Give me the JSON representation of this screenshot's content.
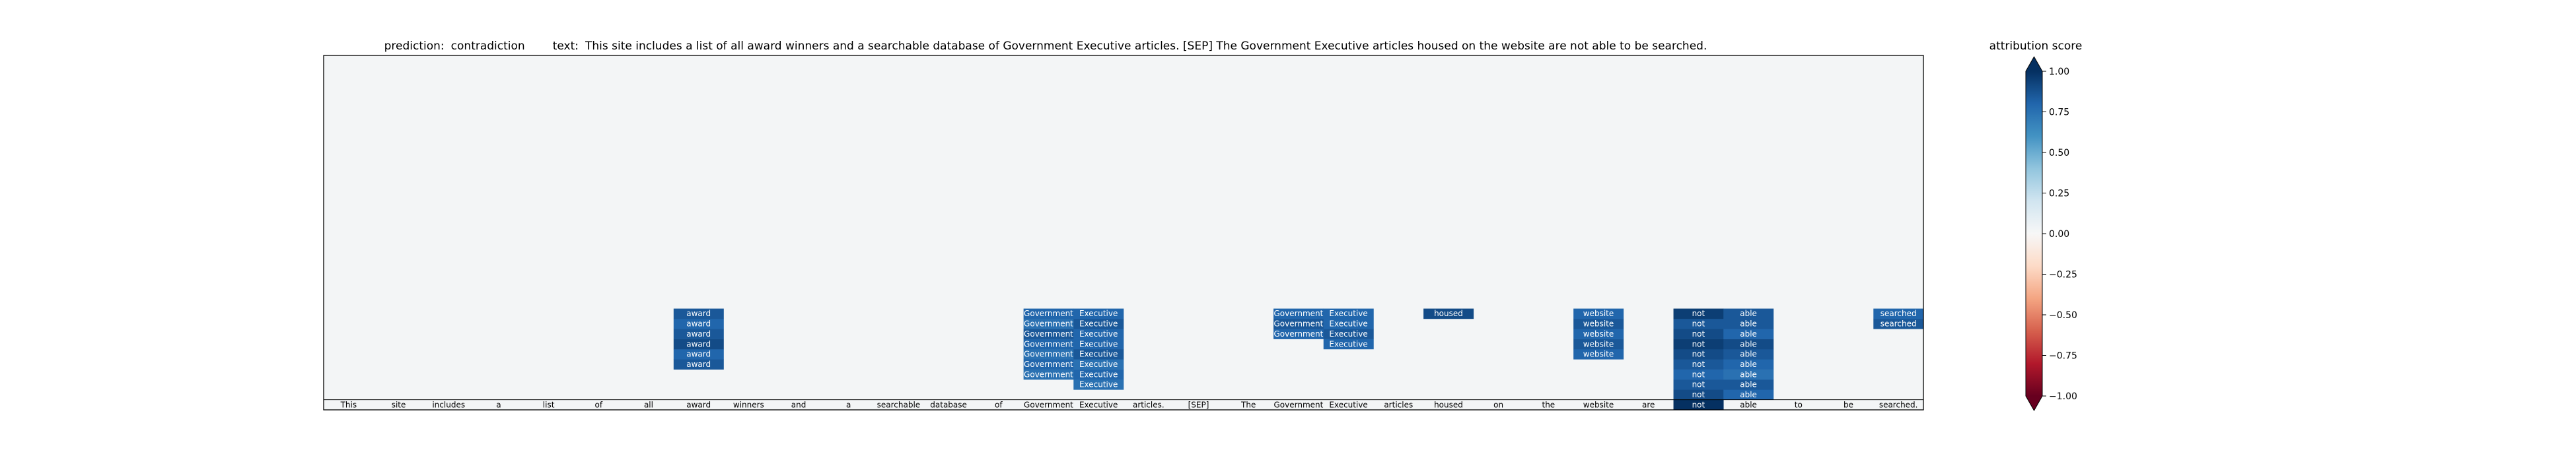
{
  "chart_data": {
    "type": "heatmap",
    "title": {
      "prediction_label": "prediction:",
      "prediction": "contradiction",
      "text_label": "text:",
      "text": "This site includes a list of all award winners and a searchable database of Government Executive articles. [SEP] The Government Executive articles housed on the website are not able to be searched."
    },
    "tokens": [
      "This",
      "site",
      "includes",
      "a",
      "list",
      "of",
      "all",
      "award",
      "winners",
      "and",
      "a",
      "searchable",
      "database",
      "of",
      "Government",
      "Executive",
      "articles.",
      "[SEP]",
      "The",
      "Government",
      "Executive",
      "articles",
      "housed",
      "on",
      "the",
      "website",
      "are",
      "not",
      "able",
      "to",
      "be",
      "searched."
    ],
    "rows": 35,
    "bottom_row_scores": [
      0,
      0,
      0,
      0,
      0,
      0,
      0,
      0,
      0,
      0,
      0,
      0,
      0,
      0,
      0,
      0,
      0,
      0,
      0,
      0,
      0,
      0,
      0,
      0,
      0,
      0,
      0,
      1.0,
      0,
      0,
      0,
      0
    ],
    "highlights": [
      {
        "token": "award",
        "col": 7,
        "cells": [
          {
            "row_from_bottom": 4,
            "score": 0.85
          },
          {
            "row_from_bottom": 5,
            "score": 0.8
          },
          {
            "row_from_bottom": 6,
            "score": 0.9
          },
          {
            "row_from_bottom": 7,
            "score": 0.85
          },
          {
            "row_from_bottom": 8,
            "score": 0.8
          },
          {
            "row_from_bottom": 9,
            "score": 0.85
          }
        ]
      },
      {
        "token": "Government",
        "col": 14,
        "cells": [
          {
            "row_from_bottom": 3,
            "score": 0.75
          },
          {
            "row_from_bottom": 4,
            "score": 0.8
          },
          {
            "row_from_bottom": 5,
            "score": 0.75
          },
          {
            "row_from_bottom": 6,
            "score": 0.8
          },
          {
            "row_from_bottom": 7,
            "score": 0.85
          },
          {
            "row_from_bottom": 8,
            "score": 0.75
          },
          {
            "row_from_bottom": 9,
            "score": 0.8
          }
        ]
      },
      {
        "token": "Executive",
        "col": 15,
        "cells": [
          {
            "row_from_bottom": 2,
            "score": 0.75
          },
          {
            "row_from_bottom": 3,
            "score": 0.8
          },
          {
            "row_from_bottom": 4,
            "score": 0.75
          },
          {
            "row_from_bottom": 5,
            "score": 0.85
          },
          {
            "row_from_bottom": 6,
            "score": 0.8
          },
          {
            "row_from_bottom": 7,
            "score": 0.8
          },
          {
            "row_from_bottom": 8,
            "score": 0.85
          },
          {
            "row_from_bottom": 9,
            "score": 0.8
          }
        ]
      },
      {
        "token": "Government",
        "col": 19,
        "cells": [
          {
            "row_from_bottom": 7,
            "score": 0.8
          },
          {
            "row_from_bottom": 8,
            "score": 0.85
          },
          {
            "row_from_bottom": 9,
            "score": 0.8
          }
        ]
      },
      {
        "token": "Executive",
        "col": 20,
        "cells": [
          {
            "row_from_bottom": 6,
            "score": 0.8
          },
          {
            "row_from_bottom": 7,
            "score": 0.85
          },
          {
            "row_from_bottom": 8,
            "score": 0.8
          },
          {
            "row_from_bottom": 9,
            "score": 0.8
          }
        ]
      },
      {
        "token": "housed",
        "col": 22,
        "cells": [
          {
            "row_from_bottom": 9,
            "score": 0.9
          }
        ]
      },
      {
        "token": "website",
        "col": 25,
        "cells": [
          {
            "row_from_bottom": 5,
            "score": 0.8
          },
          {
            "row_from_bottom": 6,
            "score": 0.85
          },
          {
            "row_from_bottom": 7,
            "score": 0.8
          },
          {
            "row_from_bottom": 8,
            "score": 0.85
          },
          {
            "row_from_bottom": 9,
            "score": 0.8
          }
        ]
      },
      {
        "token": "not",
        "col": 27,
        "cells": [
          {
            "row_from_bottom": 1,
            "score": 0.9
          },
          {
            "row_from_bottom": 2,
            "score": 0.85
          },
          {
            "row_from_bottom": 3,
            "score": 0.8
          },
          {
            "row_from_bottom": 4,
            "score": 0.85
          },
          {
            "row_from_bottom": 5,
            "score": 0.9
          },
          {
            "row_from_bottom": 6,
            "score": 0.95
          },
          {
            "row_from_bottom": 7,
            "score": 0.9
          },
          {
            "row_from_bottom": 8,
            "score": 0.85
          },
          {
            "row_from_bottom": 9,
            "score": 0.95
          }
        ]
      },
      {
        "token": "able",
        "col": 28,
        "cells": [
          {
            "row_from_bottom": 1,
            "score": 0.8
          },
          {
            "row_from_bottom": 2,
            "score": 0.85
          },
          {
            "row_from_bottom": 3,
            "score": 0.75
          },
          {
            "row_from_bottom": 4,
            "score": 0.8
          },
          {
            "row_from_bottom": 5,
            "score": 0.85
          },
          {
            "row_from_bottom": 6,
            "score": 0.9
          },
          {
            "row_from_bottom": 7,
            "score": 0.8
          },
          {
            "row_from_bottom": 8,
            "score": 0.85
          },
          {
            "row_from_bottom": 9,
            "score": 0.85
          }
        ]
      },
      {
        "token": "searched",
        "col": 31,
        "cells": [
          {
            "row_from_bottom": 8,
            "score": 0.85
          },
          {
            "row_from_bottom": 9,
            "score": 0.8
          }
        ]
      }
    ],
    "background_score": 0.02,
    "colorbar": {
      "label": "attribution score",
      "colormap": "RdBu",
      "range": [
        -1.0,
        1.0
      ],
      "ticks": [
        "1.00",
        "0.75",
        "0.50",
        "0.25",
        "0.00",
        "−0.25",
        "−0.50",
        "−0.75",
        "−1.00"
      ],
      "tick_values": [
        1.0,
        0.75,
        0.5,
        0.25,
        0.0,
        -0.25,
        -0.5,
        -0.75,
        -1.0
      ],
      "extend": "both"
    }
  }
}
